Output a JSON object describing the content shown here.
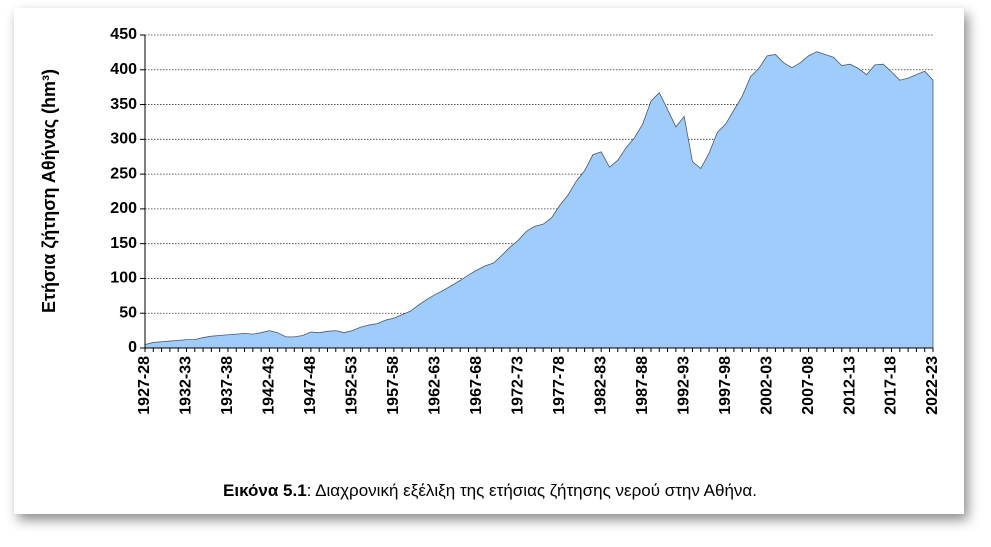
{
  "chart_data": {
    "type": "area",
    "ylabel": "Ετήσια ζήτηση Αθήνας (hm³)",
    "caption_label": "Εικόνα 5.1",
    "caption": ": Διαχρονική εξέλιξη της ετήσιας ζήτησης νερού στην Αθήνα.",
    "categories": [
      "1927-28",
      null,
      null,
      null,
      null,
      "1932-33",
      null,
      null,
      null,
      null,
      "1937-38",
      null,
      null,
      null,
      null,
      "1942-43",
      null,
      null,
      null,
      null,
      "1947-48",
      null,
      null,
      null,
      null,
      "1952-53",
      null,
      null,
      null,
      null,
      "1957-58",
      null,
      null,
      null,
      null,
      "1962-63",
      null,
      null,
      null,
      null,
      "1967-68",
      null,
      null,
      null,
      null,
      "1972-73",
      null,
      null,
      null,
      null,
      "1977-78",
      null,
      null,
      null,
      null,
      "1982-83",
      null,
      null,
      null,
      null,
      "1987-88",
      null,
      null,
      null,
      null,
      "1992-93",
      null,
      null,
      null,
      null,
      "1997-98",
      null,
      null,
      null,
      null,
      "2002-03",
      null,
      null,
      null,
      null,
      "2007-08",
      null,
      null,
      null,
      null,
      "2012-13",
      null,
      null,
      null,
      null,
      "2017-18",
      null,
      null,
      null,
      null,
      "2022-23"
    ],
    "values": [
      5,
      8,
      9,
      10,
      11,
      12,
      12,
      15,
      17,
      18,
      19,
      20,
      21,
      20,
      22,
      25,
      22,
      16,
      16,
      18,
      23,
      22,
      24,
      25,
      22,
      25,
      30,
      33,
      35,
      40,
      43,
      48,
      53,
      62,
      70,
      77,
      83,
      90,
      97,
      105,
      112,
      118,
      122,
      133,
      145,
      155,
      168,
      175,
      178,
      187,
      205,
      220,
      240,
      255,
      278,
      282,
      260,
      270,
      288,
      302,
      322,
      355,
      367,
      343,
      318,
      333,
      268,
      258,
      280,
      310,
      322,
      342,
      362,
      390,
      402,
      420,
      422,
      410,
      403,
      410,
      420,
      426,
      422,
      418,
      406,
      408,
      402,
      393,
      407,
      408,
      397,
      385,
      388,
      393,
      398,
      385
    ],
    "color": "#9fccfa",
    "ylim": [
      0,
      450
    ],
    "yticks": [
      0,
      50,
      100,
      150,
      200,
      250,
      300,
      350,
      400,
      450
    ],
    "grid": true
  }
}
